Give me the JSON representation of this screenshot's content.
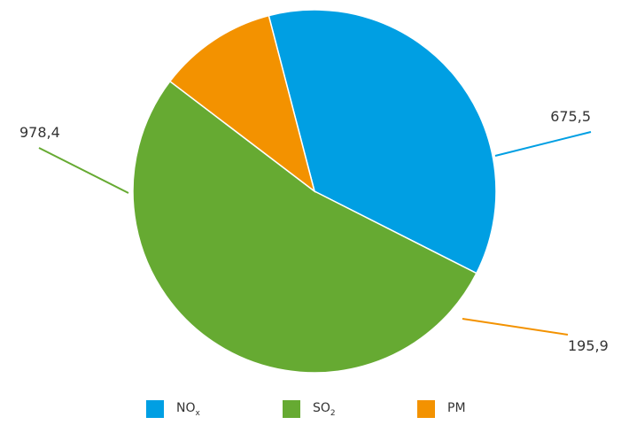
{
  "chart_data": {
    "type": "pie",
    "categories": [
      "NOx",
      "SO2",
      "PM"
    ],
    "values": [
      675.5,
      978.4,
      195.9
    ],
    "data_labels": [
      "675,5",
      "978,4",
      "195,9"
    ],
    "colors": [
      "#009FE3",
      "#66AA32",
      "#F39200"
    ],
    "legend": [
      {
        "label": "NO",
        "sub": "x"
      },
      {
        "label": "SO",
        "sub": "2"
      },
      {
        "label": "PM",
        "sub": ""
      }
    ],
    "legend_position": "bottom",
    "start_angle_deg": -14.6
  }
}
